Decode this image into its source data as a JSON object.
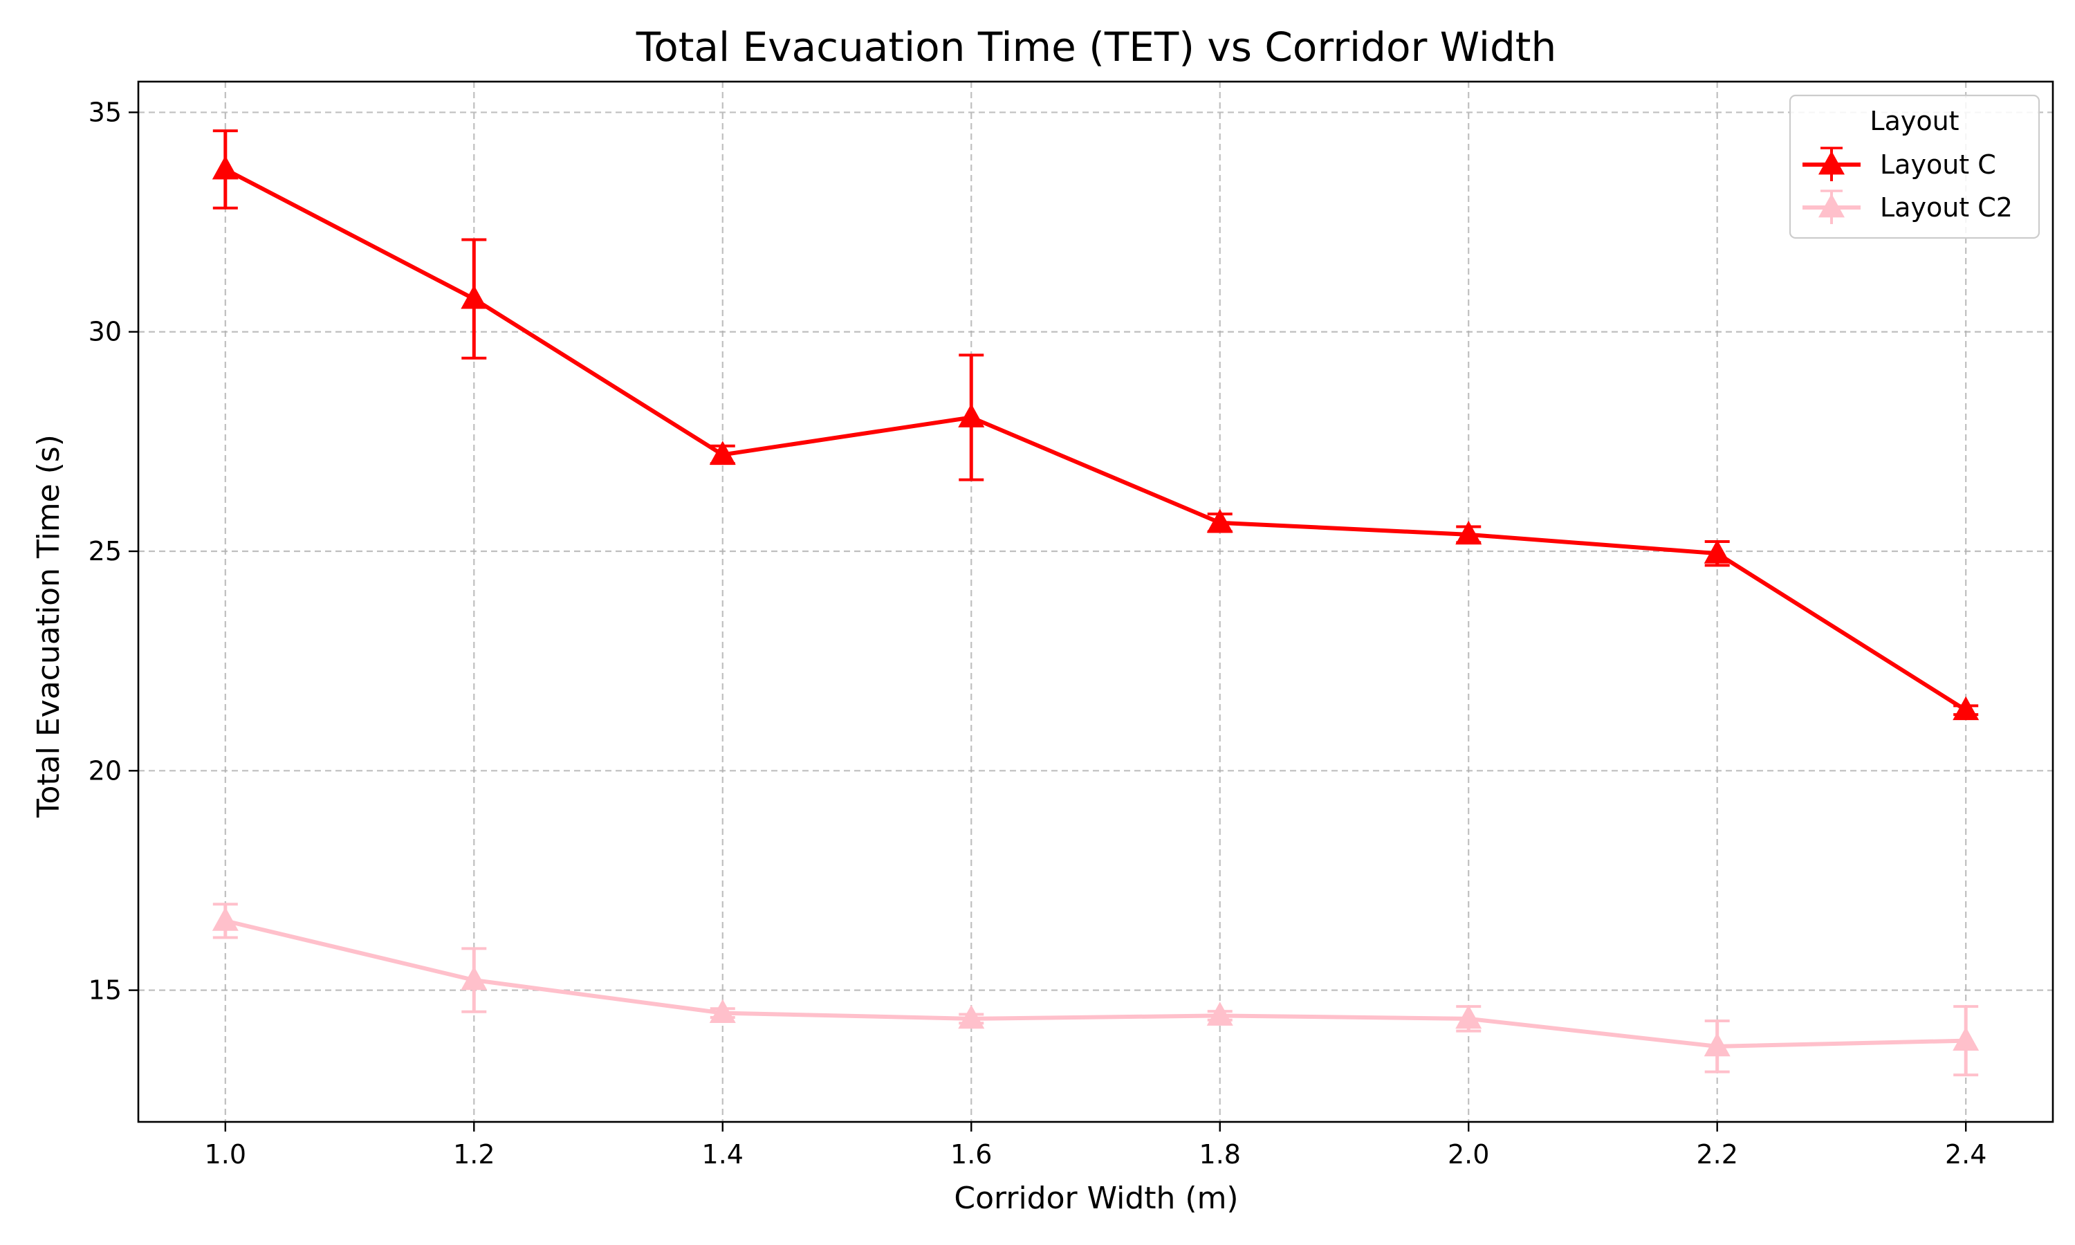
{
  "chart_data": {
    "type": "line",
    "title": "Total Evacuation Time (TET) vs Corridor Width",
    "xlabel": "Corridor Width (m)",
    "ylabel": "Total Evacuation Time (s)",
    "x": [
      1.0,
      1.2,
      1.4,
      1.6,
      1.8,
      2.0,
      2.2,
      2.4
    ],
    "x_tick_labels": [
      "1.0",
      "1.2",
      "1.4",
      "1.6",
      "1.8",
      "2.0",
      "2.2",
      "2.4"
    ],
    "y_ticks": [
      15,
      20,
      25,
      30,
      35
    ],
    "y_tick_labels": [
      "15",
      "20",
      "25",
      "30",
      "35"
    ],
    "xlim": [
      0.93,
      2.47
    ],
    "ylim": [
      12.0,
      35.7
    ],
    "grid": true,
    "grid_style": "dashed",
    "legend": {
      "title": "Layout",
      "placement": "top-right"
    },
    "marker": "triangle",
    "error_bars": true,
    "series": [
      {
        "name": "Layout C",
        "color": "#ff0000",
        "values": [
          33.7,
          30.75,
          27.2,
          28.05,
          25.65,
          25.38,
          24.95,
          21.38
        ],
        "errors": [
          0.88,
          1.35,
          0.2,
          1.42,
          0.2,
          0.18,
          0.27,
          0.1
        ]
      },
      {
        "name": "Layout C2",
        "color": "#ffc0cb",
        "values": [
          16.58,
          15.23,
          14.48,
          14.35,
          14.42,
          14.35,
          13.72,
          13.85
        ],
        "errors": [
          0.38,
          0.72,
          0.1,
          0.1,
          0.1,
          0.28,
          0.58,
          0.78
        ]
      }
    ]
  }
}
